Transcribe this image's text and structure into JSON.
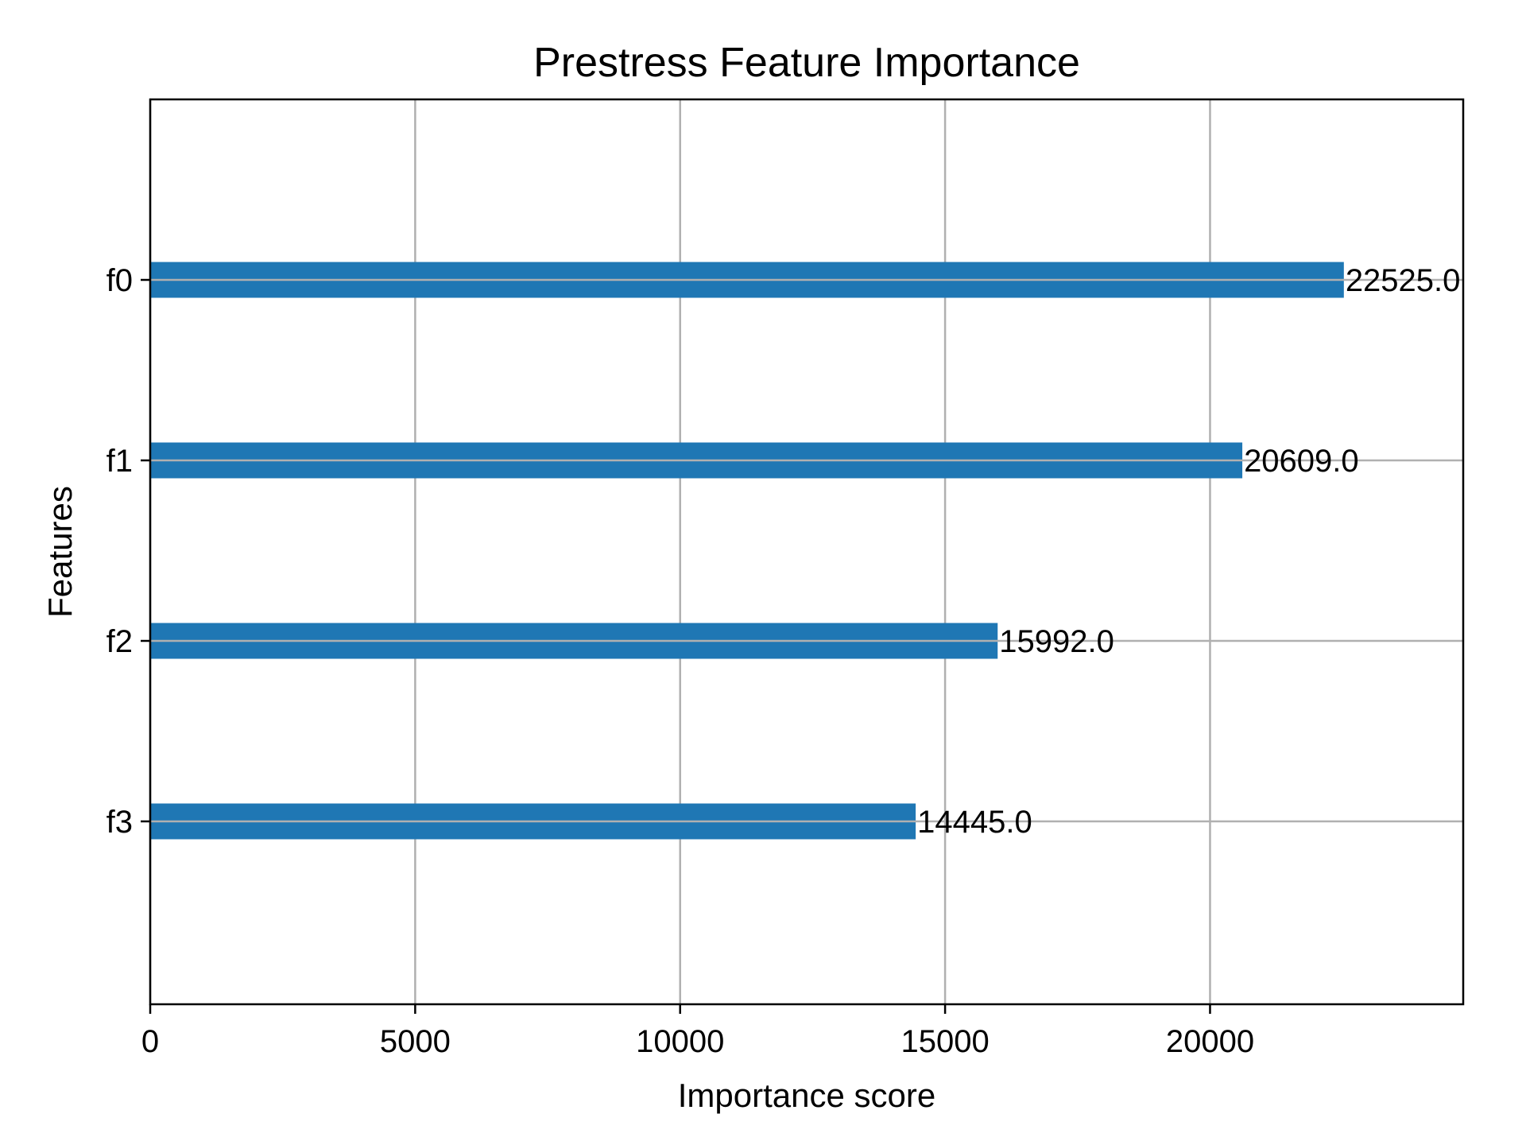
{
  "chart_data": {
    "type": "bar",
    "orientation": "horizontal",
    "title": "Prestress Feature Importance",
    "xlabel": "Importance score",
    "ylabel": "Features",
    "categories": [
      "f0",
      "f1",
      "f2",
      "f3"
    ],
    "values": [
      22525.0,
      20609.0,
      15992.0,
      14445.0
    ],
    "value_labels": [
      "22525.0",
      "20609.0",
      "15992.0",
      "14445.0"
    ],
    "x_ticks": [
      0,
      5000,
      10000,
      15000,
      20000
    ],
    "x_tick_labels": [
      "0",
      "5000",
      "10000",
      "15000",
      "20000"
    ],
    "xlim": [
      0,
      24777.5
    ],
    "grid": true,
    "bar_color": "#1f77b4",
    "grid_color": "#b0b0b0"
  }
}
